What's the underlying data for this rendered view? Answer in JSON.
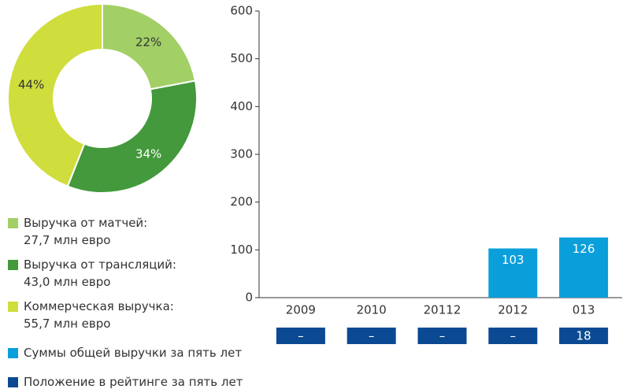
{
  "chart_data": [
    {
      "type": "pie",
      "categories": [
        "Выручка от матчей:\n27,7 млн евро",
        "Выручка от трансляций:\n43,0 млн евро",
        "Коммерческая выручка:\n55,7 млн евро"
      ],
      "values": [
        22,
        34,
        44
      ],
      "value_labels": [
        "22%",
        "34%",
        "44%"
      ],
      "colors": [
        "#a2cf66",
        "#43993b",
        "#cfdd3d"
      ]
    },
    {
      "type": "bar",
      "categories": [
        "2009",
        "2010",
        "20112",
        "2012",
        "013"
      ],
      "ylim": [
        0,
        600
      ],
      "yticks": [
        0,
        100,
        200,
        300,
        400,
        500,
        600
      ],
      "series": [
        {
          "name": "Суммы общей выручки за пять лет",
          "color": "#0a9fda",
          "values": [
            null,
            null,
            null,
            103,
            126
          ]
        },
        {
          "name": "Положение в рейтинге за пять лет",
          "color": "#0b4a92",
          "values": [
            null,
            null,
            null,
            null,
            18
          ],
          "value_labels": [
            "–",
            "–",
            "–",
            "–",
            "18"
          ]
        }
      ]
    }
  ]
}
